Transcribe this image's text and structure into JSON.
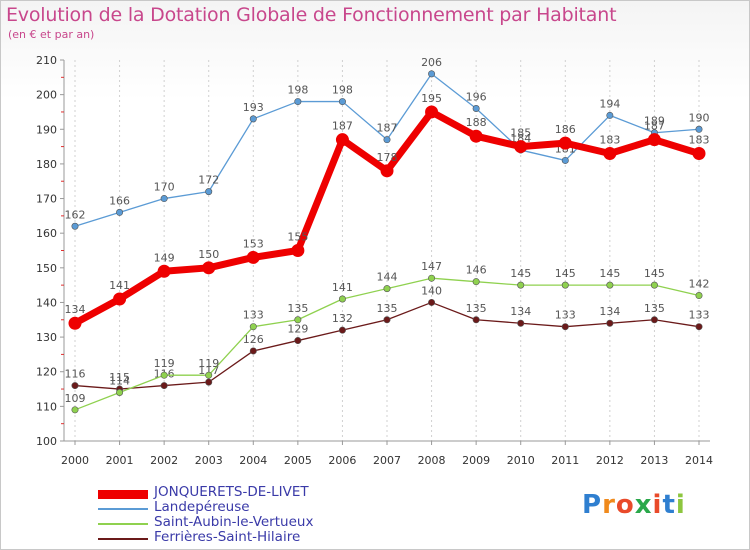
{
  "header": {
    "title": "Evolution de la Dotation Globale de Fonctionnement par Habitant",
    "subtitle": "(en € et par an)"
  },
  "logo": {
    "text": "Proxiti",
    "letters": [
      "P",
      "r",
      "o",
      "x",
      "i",
      "t",
      "i"
    ],
    "colors": [
      "#2f7fd0",
      "#f08a1c",
      "#e94a2a",
      "#2aa84a",
      "#e94a2a",
      "#2f7fd0",
      "#8dc63f"
    ]
  },
  "colors": {
    "grid": "#d0d0d0",
    "axis": "#999999",
    "minor_tick": "#e03030"
  },
  "chart_data": {
    "type": "line",
    "x": [
      "2000",
      "2001",
      "2002",
      "2003",
      "2004",
      "2005",
      "2006",
      "2007",
      "2008",
      "2009",
      "2010",
      "2011",
      "2012",
      "2013",
      "2014"
    ],
    "ylim": [
      100,
      210
    ],
    "yticks": [
      "100",
      "110",
      "120",
      "130",
      "140",
      "150",
      "160",
      "170",
      "180",
      "190",
      "200",
      "210"
    ],
    "grid": "vertical",
    "legend_position": "bottom-left",
    "series": [
      {
        "name": "JONQUERETS-DE-LIVET",
        "color": "#ee0000",
        "values": [
          134,
          141,
          149,
          150,
          153,
          155,
          187,
          178,
          195,
          188,
          185,
          186,
          183,
          187,
          183
        ],
        "labels": [
          "134",
          "141",
          "149",
          "150",
          "153",
          "155",
          "187",
          "178",
          "195",
          "188",
          "185",
          "186",
          "183",
          "187",
          "183"
        ]
      },
      {
        "name": "Landepéreuse",
        "color": "#5b9bd5",
        "values": [
          162,
          166,
          170,
          172,
          193,
          198,
          198,
          187,
          206,
          196,
          184,
          181,
          194,
          189,
          190
        ],
        "labels": [
          "162",
          "166",
          "170",
          "172",
          "193",
          "198",
          "198",
          "187",
          "206",
          "196",
          "184",
          "181",
          "194",
          "189",
          "190"
        ]
      },
      {
        "name": "Saint-Aubin-le-Vertueux",
        "color": "#8fd14f",
        "values": [
          109,
          114,
          119,
          119,
          133,
          135,
          141,
          144,
          147,
          146,
          145,
          145,
          145,
          145,
          142
        ],
        "labels": [
          "109",
          "114",
          "119",
          "119",
          "133",
          "135",
          "141",
          "144",
          "147",
          "146",
          "145",
          "145",
          "145",
          "145",
          "142"
        ]
      },
      {
        "name": "Ferrières-Saint-Hilaire",
        "color": "#6b1a1a",
        "values": [
          116,
          115,
          116,
          117,
          126,
          129,
          132,
          135,
          140,
          135,
          134,
          133,
          134,
          135,
          133
        ],
        "labels": [
          "116",
          "115",
          "116",
          "117",
          "126",
          "129",
          "132",
          "135",
          "140",
          "135",
          "134",
          "133",
          "134",
          "135",
          "133"
        ]
      }
    ]
  }
}
